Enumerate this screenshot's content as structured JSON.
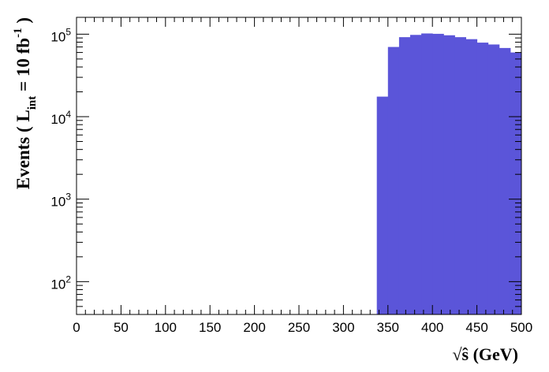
{
  "chart_data": {
    "type": "bar",
    "histogram": true,
    "bin_width": 12.5,
    "bin_edges_start": 337.5,
    "bins": [
      {
        "x0": 337.5,
        "x1": 350.0,
        "y": 17500
      },
      {
        "x0": 350.0,
        "x1": 362.5,
        "y": 70000
      },
      {
        "x0": 362.5,
        "x1": 375.0,
        "y": 92000
      },
      {
        "x0": 375.0,
        "x1": 387.5,
        "y": 98000
      },
      {
        "x0": 387.5,
        "x1": 400.0,
        "y": 102000
      },
      {
        "x0": 400.0,
        "x1": 412.5,
        "y": 101000
      },
      {
        "x0": 412.5,
        "x1": 425.0,
        "y": 97000
      },
      {
        "x0": 425.0,
        "x1": 437.5,
        "y": 92000
      },
      {
        "x0": 437.5,
        "x1": 450.0,
        "y": 87000
      },
      {
        "x0": 450.0,
        "x1": 462.5,
        "y": 79000
      },
      {
        "x0": 462.5,
        "x1": 475.0,
        "y": 75000
      },
      {
        "x0": 475.0,
        "x1": 487.5,
        "y": 68000
      },
      {
        "x0": 487.5,
        "x1": 500.0,
        "y": 60000
      }
    ],
    "fill_color": "#5b55d9",
    "xlim": [
      0,
      500
    ],
    "ylim": [
      40,
      160000
    ],
    "y_scale": "log",
    "x_ticks": [
      "0",
      "50",
      "100",
      "150",
      "200",
      "250",
      "300",
      "350",
      "400",
      "450",
      "500"
    ],
    "y_ticks": [
      {
        "value": 100,
        "base": "10",
        "exp": "2"
      },
      {
        "value": 1000,
        "base": "10",
        "exp": "3"
      },
      {
        "value": 10000,
        "base": "10",
        "exp": "4"
      },
      {
        "value": 100000,
        "base": "10",
        "exp": "5"
      }
    ],
    "xlabel": {
      "root": "√",
      "var": "ŝ",
      "unit": " (GeV)"
    },
    "ylabel": {
      "pre": "Events  ( L",
      "sub": "int",
      "mid": " = 10 fb",
      "sup": "-1",
      "post": " )"
    },
    "grid": false,
    "legend": "none"
  }
}
